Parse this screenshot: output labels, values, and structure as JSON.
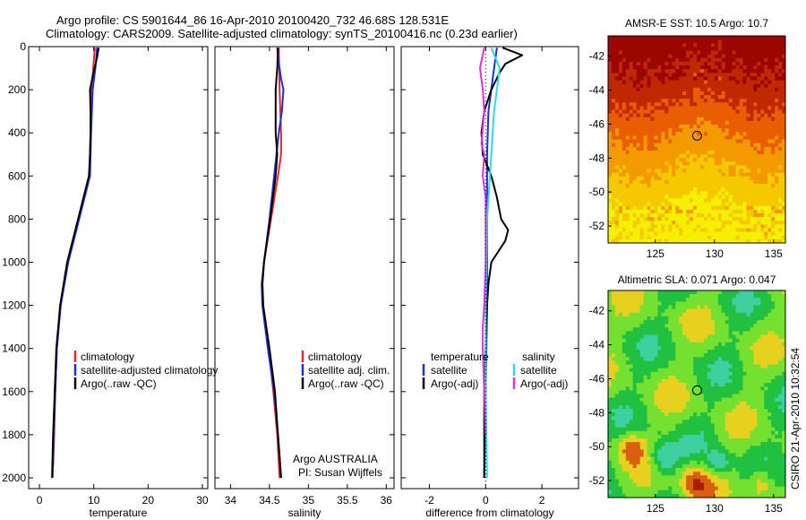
{
  "header": {
    "line1": "Argo profile: CS 5901644_86 16-Apr-2010 20100420_732 46.68S 128.531E",
    "line2": "Climatology: CARS2009. Satellite-adjusted climatology: synTS_20100416.nc (0.23d earlier)"
  },
  "credits": {
    "argo_country": "Argo AUSTRALIA",
    "pi": "PI: Susan Wijffels",
    "stamp": "CSIRO 21-Apr-2010 10:32:54"
  },
  "colors": {
    "climatology": "#e8262b",
    "satellite": "#1c2fd8",
    "argo": "#000000",
    "sal_satellite": "#2fd8e6",
    "sal_argo": "#e22fd8"
  },
  "chart_data": [
    {
      "type": "line",
      "id": "temperature",
      "xlabel": "temperature",
      "ylabel": "",
      "xlim": [
        -2,
        31
      ],
      "ylim": [
        2050,
        0
      ],
      "xticks": [
        0,
        10,
        20,
        30
      ],
      "yticks": [
        0,
        200,
        400,
        600,
        800,
        1000,
        1200,
        1400,
        1600,
        1800,
        2000
      ],
      "legend": [
        "climatology",
        "satellite-adjusted climatology",
        "Argo(..raw -QC)"
      ],
      "series": [
        {
          "name": "climatology",
          "depth": [
            5,
            100,
            200,
            400,
            600,
            800,
            1000,
            1200,
            1400,
            1600,
            1800,
            1950
          ],
          "values": [
            10.2,
            9.9,
            9.6,
            9.4,
            9.2,
            7.2,
            5.2,
            3.8,
            3.2,
            2.9,
            2.7,
            2.5
          ]
        },
        {
          "name": "satellite-adjusted climatology",
          "depth": [
            5,
            100,
            200,
            400,
            600,
            800,
            1000,
            1200,
            1400,
            1600,
            1800,
            2000
          ],
          "values": [
            10.6,
            10.3,
            9.8,
            9.5,
            9.3,
            7.3,
            5.3,
            3.9,
            3.2,
            2.9,
            2.6,
            2.4
          ]
        },
        {
          "name": "Argo(..raw -QC)",
          "depth": [
            5,
            50,
            150,
            200,
            300,
            400,
            500,
            600,
            800,
            1000,
            1200,
            1400,
            1600,
            1800,
            2000
          ],
          "values": [
            10.9,
            10.6,
            9.7,
            9.3,
            9.4,
            9.4,
            9.3,
            9.1,
            7.1,
            5.1,
            3.8,
            3.1,
            2.8,
            2.5,
            2.3
          ]
        }
      ]
    },
    {
      "type": "line",
      "id": "salinity",
      "xlabel": "salinity",
      "ylabel": "",
      "xlim": [
        33.8,
        36.1
      ],
      "ylim": [
        2050,
        0
      ],
      "xticks": [
        34,
        34.5,
        35,
        35.5,
        36
      ],
      "legend": [
        "climatology",
        "satellite adj. clim.",
        "Argo(..raw -QC)"
      ],
      "series": [
        {
          "name": "climatology",
          "depth": [
            5,
            200,
            400,
            500,
            600,
            800,
            1000,
            1100,
            1200,
            1400,
            1600,
            1800,
            2000
          ],
          "values": [
            34.62,
            34.63,
            34.65,
            34.65,
            34.61,
            34.52,
            34.43,
            34.41,
            34.42,
            34.49,
            34.55,
            34.6,
            34.63
          ]
        },
        {
          "name": "satellite adj. clim.",
          "depth": [
            5,
            50,
            150,
            200,
            300,
            400,
            500,
            600,
            800,
            1000,
            1100,
            1200,
            1400,
            1600,
            1800,
            2000
          ],
          "values": [
            34.6,
            34.61,
            34.65,
            34.68,
            34.66,
            34.62,
            34.59,
            34.56,
            34.5,
            34.43,
            34.4,
            34.41,
            34.48,
            34.56,
            34.61,
            34.65
          ]
        },
        {
          "name": "Argo(..raw -QC)",
          "depth": [
            5,
            100,
            200,
            300,
            400,
            500,
            600,
            800,
            1000,
            1100,
            1200,
            1400,
            1600,
            1800,
            2000
          ],
          "values": [
            34.61,
            34.6,
            34.58,
            34.58,
            34.58,
            34.6,
            34.58,
            34.51,
            34.43,
            34.41,
            34.42,
            34.5,
            34.57,
            34.61,
            34.65
          ]
        }
      ]
    },
    {
      "type": "line",
      "id": "difference",
      "xlabel": "difference from climatology",
      "ylabel": "",
      "xlim": [
        -3,
        3.3
      ],
      "ylim": [
        2050,
        0
      ],
      "xticks": [
        -2,
        0,
        2
      ],
      "legend_temperature": [
        "temperature",
        "satellite",
        "Argo(-adj)"
      ],
      "legend_salinity": [
        "salinity",
        "satellite",
        "Argo(-adj)"
      ],
      "series": [
        {
          "name": "temperature satellite",
          "depth": [
            5,
            100,
            300,
            500,
            800,
            1200,
            1600,
            2000
          ],
          "values": [
            0.4,
            0.3,
            0.1,
            0.05,
            0.05,
            0.05,
            0.0,
            -0.05
          ]
        },
        {
          "name": "temperature Argo(-adj)",
          "depth": [
            5,
            40,
            80,
            120,
            200,
            300,
            400,
            500,
            600,
            700,
            800,
            850,
            900,
            1000,
            1100,
            1200,
            1400,
            1600,
            1800,
            2000
          ],
          "values": [
            0.6,
            1.3,
            0.7,
            0.5,
            0.2,
            -0.05,
            -0.15,
            -0.1,
            0.2,
            0.4,
            0.55,
            0.8,
            0.7,
            0.2,
            0.1,
            0.05,
            0.0,
            -0.05,
            -0.05,
            -0.05
          ]
        },
        {
          "name": "salinity satellite",
          "depth": [
            5,
            100,
            300,
            500,
            800,
            1200,
            1600,
            2000
          ],
          "values": [
            0.2,
            0.5,
            0.3,
            0.2,
            0.05,
            0.0,
            0.0,
            0.05
          ]
        },
        {
          "name": "salinity Argo(-adj)",
          "depth": [
            5,
            100,
            200,
            300,
            450,
            500,
            600,
            700,
            800,
            1000,
            1200,
            1300,
            1400,
            1600,
            1800
          ],
          "values": [
            -0.05,
            -0.2,
            -0.1,
            -0.05,
            -0.15,
            -0.05,
            -0.1,
            0.0,
            0.0,
            0.0,
            -0.05,
            -0.1,
            -0.1,
            -0.05,
            0.0
          ]
        }
      ]
    },
    {
      "type": "heatmap",
      "id": "sst_map",
      "title": "AMSR-E SST: 10.5 Argo: 10.7",
      "xlim": [
        121,
        136
      ],
      "ylim": [
        -53,
        -40.8
      ],
      "xticks": [
        125,
        130,
        135
      ],
      "yticks": [
        -42,
        -44,
        -46,
        -48,
        -50,
        -52
      ],
      "argo_marker": [
        128.531,
        -46.68
      ],
      "colormap": [
        "#f6f000",
        "#f5c800",
        "#f29a00",
        "#e85e00",
        "#c02800",
        "#9a0600"
      ]
    },
    {
      "type": "heatmap",
      "id": "sla_map",
      "title": "Altimetric SLA: 0.071 Argo: 0.047",
      "xlim": [
        121,
        136
      ],
      "ylim": [
        -53,
        -40.8
      ],
      "xticks": [
        125,
        130,
        135
      ],
      "yticks": [
        -42,
        -44,
        -46,
        -48,
        -50,
        -52
      ],
      "argo_marker": [
        128.531,
        -46.68
      ],
      "colormap": [
        "#2aa0d0",
        "#3fd0a0",
        "#22c040",
        "#74e030",
        "#e8d020",
        "#d86010",
        "#a02000"
      ]
    }
  ]
}
